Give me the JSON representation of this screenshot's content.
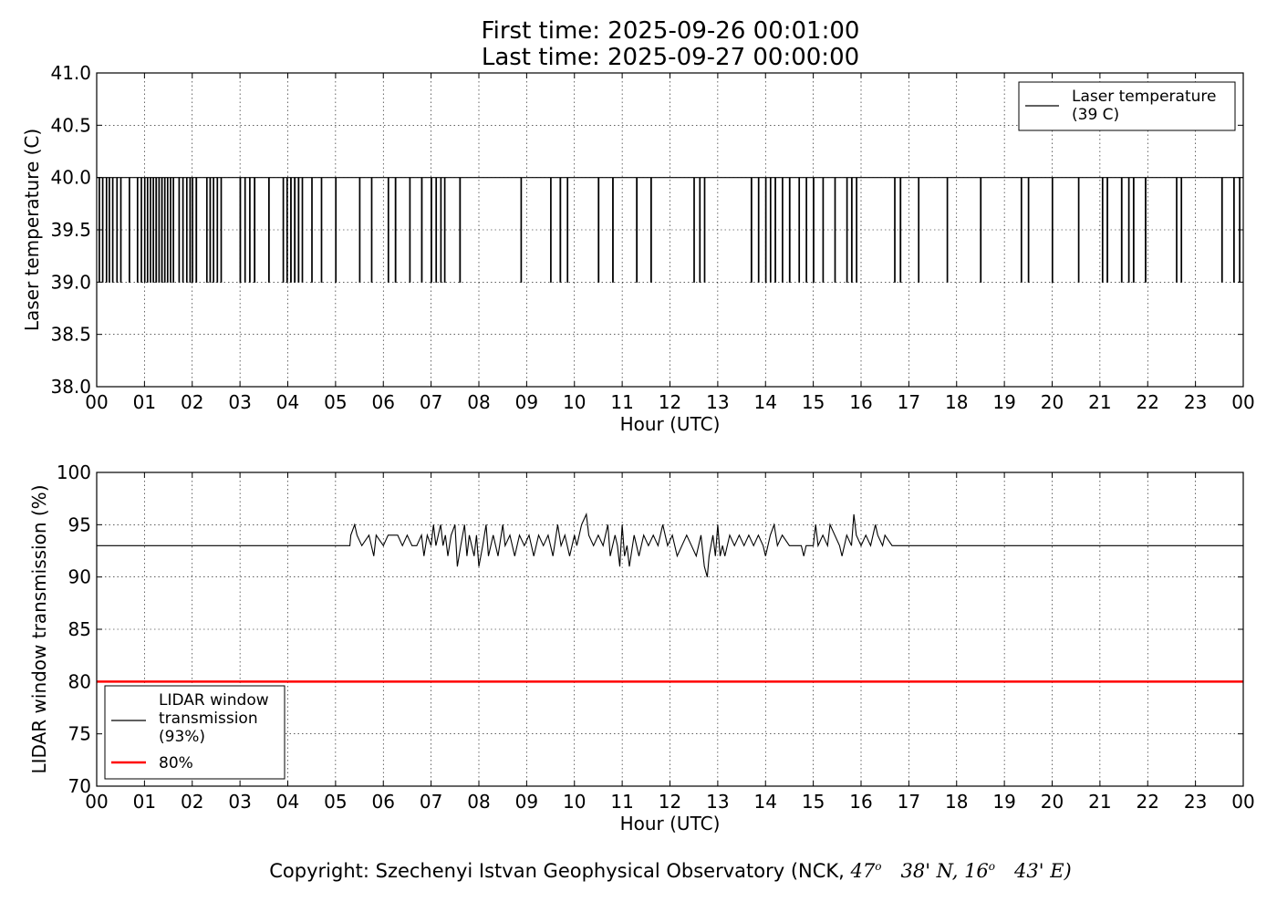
{
  "header": {
    "first_time": "First time: 2025-09-26 00:01:00",
    "last_time": "Last time: 2025-09-27 00:00:00"
  },
  "footer": {
    "prefix": "Copyright: Szechenyi Istvan Geophysical Observatory (NCK, ",
    "lat_deg": "47",
    "lat_min": "38' N, ",
    "lon_deg": "16",
    "lon_min": "43' E)",
    "degree_mark": "o"
  },
  "chart_data": [
    {
      "type": "line",
      "ylabel": "Laser temperature (C)",
      "xlabel": "Hour (UTC)",
      "ylim": [
        38.0,
        41.0
      ],
      "xlim_hours": [
        0,
        24
      ],
      "yticks": [
        "38.0",
        "38.5",
        "39.0",
        "39.5",
        "40.0",
        "40.5",
        "41.0"
      ],
      "xticks": [
        "00",
        "01",
        "02",
        "03",
        "04",
        "05",
        "06",
        "07",
        "08",
        "09",
        "10",
        "11",
        "12",
        "13",
        "14",
        "15",
        "16",
        "17",
        "18",
        "19",
        "20",
        "21",
        "22",
        "23",
        "00"
      ],
      "grid": true,
      "legend_position": "top-right",
      "series": [
        {
          "name": "Laser temperature\n(39 C)",
          "legend_lines": [
            "Laser temperature",
            "(39 C)"
          ],
          "color": "#000000",
          "baseline": 40.0,
          "dip_value": 39.0,
          "dip_hours": [
            0.05,
            0.12,
            0.2,
            0.26,
            0.33,
            0.42,
            0.5,
            0.68,
            0.85,
            0.93,
            1.0,
            1.06,
            1.12,
            1.18,
            1.24,
            1.3,
            1.36,
            1.42,
            1.48,
            1.54,
            1.6,
            1.72,
            1.8,
            1.88,
            1.95,
            2.0,
            2.08,
            2.3,
            2.37,
            2.44,
            2.52,
            2.6,
            3.0,
            3.1,
            3.2,
            3.3,
            3.6,
            3.9,
            3.98,
            4.06,
            4.14,
            4.22,
            4.3,
            4.5,
            4.7,
            5.0,
            5.5,
            5.75,
            6.1,
            6.25,
            6.55,
            6.8,
            7.0,
            7.1,
            7.2,
            7.28,
            7.6,
            8.88,
            9.5,
            9.7,
            9.85,
            10.5,
            10.8,
            11.3,
            11.6,
            12.5,
            12.62,
            12.72,
            13.7,
            13.85,
            14.0,
            14.1,
            14.2,
            14.35,
            14.5,
            14.7,
            14.85,
            15.0,
            15.2,
            15.45,
            15.7,
            15.8,
            15.9,
            16.7,
            16.82,
            17.2,
            17.8,
            18.5,
            19.35,
            19.5,
            20.0,
            20.55,
            21.05,
            21.15,
            21.45,
            21.6,
            21.7,
            21.95,
            22.6,
            22.7,
            23.55,
            23.8,
            23.92
          ]
        }
      ]
    },
    {
      "type": "line",
      "ylabel": "LIDAR window transmission (%)",
      "xlabel": "Hour (UTC)",
      "ylim": [
        70,
        100
      ],
      "xlim_hours": [
        0,
        24
      ],
      "yticks": [
        "70",
        "75",
        "80",
        "85",
        "90",
        "95",
        "100"
      ],
      "xticks": [
        "00",
        "01",
        "02",
        "03",
        "04",
        "05",
        "06",
        "07",
        "08",
        "09",
        "10",
        "11",
        "12",
        "13",
        "14",
        "15",
        "16",
        "17",
        "18",
        "19",
        "20",
        "21",
        "22",
        "23",
        "00"
      ],
      "grid": true,
      "legend_position": "bottom-left",
      "series": [
        {
          "name": "LIDAR window\ntransmission\n(93%)",
          "legend_lines": [
            "LIDAR window",
            "transmission",
            "(93%)"
          ],
          "color": "#000000",
          "baseline": 93,
          "active_start_hour": 5.3,
          "active_end_hour": 16.65,
          "points": [
            [
              0,
              93
            ],
            [
              5.3,
              93
            ],
            [
              5.32,
              94
            ],
            [
              5.4,
              95
            ],
            [
              5.45,
              94
            ],
            [
              5.55,
              93
            ],
            [
              5.7,
              94
            ],
            [
              5.8,
              92
            ],
            [
              5.85,
              94
            ],
            [
              6.0,
              93
            ],
            [
              6.1,
              94
            ],
            [
              6.3,
              94
            ],
            [
              6.4,
              93
            ],
            [
              6.5,
              94
            ],
            [
              6.6,
              93
            ],
            [
              6.7,
              93
            ],
            [
              6.8,
              94
            ],
            [
              6.85,
              92
            ],
            [
              6.92,
              94
            ],
            [
              7.0,
              93
            ],
            [
              7.05,
              95
            ],
            [
              7.1,
              93
            ],
            [
              7.15,
              94
            ],
            [
              7.2,
              95
            ],
            [
              7.25,
              93
            ],
            [
              7.3,
              94
            ],
            [
              7.35,
              92
            ],
            [
              7.42,
              94
            ],
            [
              7.5,
              95
            ],
            [
              7.55,
              91
            ],
            [
              7.62,
              93
            ],
            [
              7.7,
              95
            ],
            [
              7.75,
              92
            ],
            [
              7.8,
              94
            ],
            [
              7.85,
              93
            ],
            [
              7.9,
              92
            ],
            [
              7.95,
              94
            ],
            [
              8.0,
              91
            ],
            [
              8.08,
              93
            ],
            [
              8.15,
              95
            ],
            [
              8.2,
              92
            ],
            [
              8.3,
              94
            ],
            [
              8.4,
              92
            ],
            [
              8.5,
              95
            ],
            [
              8.55,
              93
            ],
            [
              8.65,
              94
            ],
            [
              8.75,
              92
            ],
            [
              8.85,
              94
            ],
            [
              8.95,
              93
            ],
            [
              9.05,
              94
            ],
            [
              9.15,
              92
            ],
            [
              9.25,
              94
            ],
            [
              9.35,
              93
            ],
            [
              9.45,
              94
            ],
            [
              9.55,
              92
            ],
            [
              9.65,
              95
            ],
            [
              9.72,
              93
            ],
            [
              9.8,
              94
            ],
            [
              9.9,
              92
            ],
            [
              10.0,
              94
            ],
            [
              10.05,
              93
            ],
            [
              10.15,
              95
            ],
            [
              10.25,
              96
            ],
            [
              10.3,
              94
            ],
            [
              10.4,
              93
            ],
            [
              10.5,
              94
            ],
            [
              10.6,
              93
            ],
            [
              10.7,
              95
            ],
            [
              10.75,
              92
            ],
            [
              10.85,
              94
            ],
            [
              10.9,
              93
            ],
            [
              10.95,
              91
            ],
            [
              11.0,
              95
            ],
            [
              11.05,
              92
            ],
            [
              11.1,
              93
            ],
            [
              11.15,
              91
            ],
            [
              11.25,
              94
            ],
            [
              11.35,
              92
            ],
            [
              11.45,
              94
            ],
            [
              11.55,
              93
            ],
            [
              11.65,
              94
            ],
            [
              11.75,
              93
            ],
            [
              11.85,
              95
            ],
            [
              11.95,
              93
            ],
            [
              12.05,
              94
            ],
            [
              12.15,
              92
            ],
            [
              12.25,
              93
            ],
            [
              12.35,
              94
            ],
            [
              12.45,
              93
            ],
            [
              12.55,
              92
            ],
            [
              12.65,
              94
            ],
            [
              12.72,
              91
            ],
            [
              12.78,
              90
            ],
            [
              12.82,
              92
            ],
            [
              12.9,
              94
            ],
            [
              12.95,
              92
            ],
            [
              13.0,
              95
            ],
            [
              13.05,
              92
            ],
            [
              13.1,
              93
            ],
            [
              13.15,
              92
            ],
            [
              13.25,
              94
            ],
            [
              13.35,
              93
            ],
            [
              13.45,
              94
            ],
            [
              13.55,
              93
            ],
            [
              13.65,
              94
            ],
            [
              13.75,
              93
            ],
            [
              13.85,
              94
            ],
            [
              13.95,
              93
            ],
            [
              14.0,
              92
            ],
            [
              14.1,
              94
            ],
            [
              14.18,
              95
            ],
            [
              14.25,
              93
            ],
            [
              14.35,
              94
            ],
            [
              14.5,
              93
            ],
            [
              14.75,
              93
            ],
            [
              14.8,
              92
            ],
            [
              14.85,
              93
            ],
            [
              15.0,
              93
            ],
            [
              15.05,
              95
            ],
            [
              15.1,
              93
            ],
            [
              15.2,
              94
            ],
            [
              15.3,
              93
            ],
            [
              15.35,
              95
            ],
            [
              15.45,
              94
            ],
            [
              15.55,
              93
            ],
            [
              15.6,
              92
            ],
            [
              15.7,
              94
            ],
            [
              15.8,
              93
            ],
            [
              15.85,
              96
            ],
            [
              15.9,
              94
            ],
            [
              16.0,
              93
            ],
            [
              16.1,
              94
            ],
            [
              16.2,
              93
            ],
            [
              16.3,
              95
            ],
            [
              16.35,
              94
            ],
            [
              16.45,
              93
            ],
            [
              16.5,
              94
            ],
            [
              16.65,
              93
            ],
            [
              24,
              93
            ]
          ]
        },
        {
          "name": "80%",
          "legend_lines": [
            "80%"
          ],
          "color": "#ff0000",
          "constant": 80
        }
      ]
    }
  ]
}
